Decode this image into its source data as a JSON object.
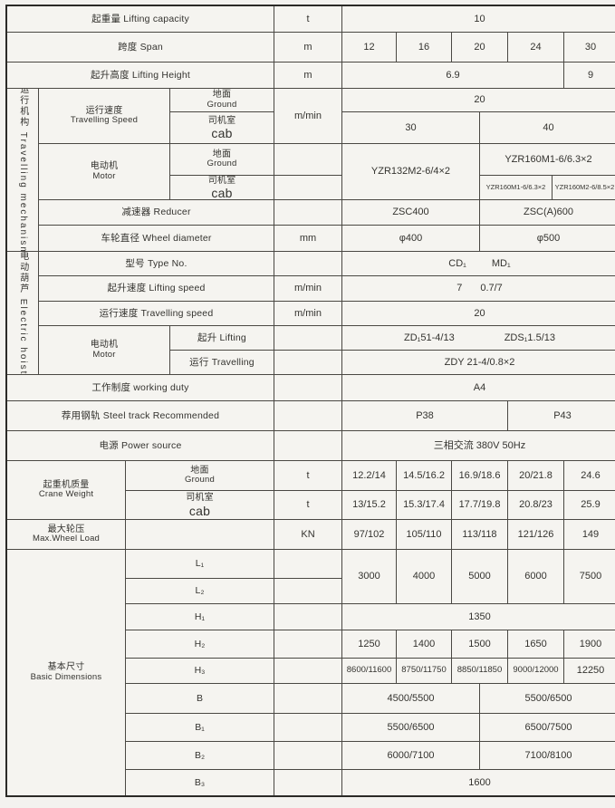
{
  "colors": {
    "paper": "#f3f2ef",
    "cell": "#f5f4f0",
    "line": "#4a4843",
    "text": "#34332f"
  },
  "table": {
    "lifting_capacity": {
      "label": "起重量 Lifting capacity",
      "unit": "t",
      "value": "10"
    },
    "span": {
      "label": "跨度 Span",
      "unit": "m",
      "values": [
        "12",
        "16",
        "20",
        "24",
        "30"
      ]
    },
    "lifting_height": {
      "label": "起升高度 Lifting Height",
      "unit": "m",
      "value_main": "6.9",
      "value_last": "9"
    },
    "travelling_mechanism": {
      "section_label": "运行机构 Travelling mechanism",
      "travelling_speed": {
        "label_zh": "运行速度",
        "label_en": "Travelling Speed",
        "unit": "m/min",
        "ground": {
          "label_zh": "地面",
          "label_en": "Ground",
          "value": "20"
        },
        "cab": {
          "label_zh": "司机室",
          "label_en": "cab",
          "value_left": "30",
          "value_right": "40"
        }
      },
      "motor": {
        "label_zh": "电动机",
        "label_en": "Motor",
        "ground": {
          "label_zh": "地面",
          "label_en": "Ground"
        },
        "cab": {
          "label_zh": "司机室",
          "label_en": "cab"
        },
        "value_main": "YZR132M2-6/4×2",
        "value_ground_right": "YZR160M1-6/6.3×2",
        "value_cab_left": "YZR160M1-6/6.3×2",
        "value_cab_right": "YZR160M2-6/8.5×2"
      },
      "reducer": {
        "label": "减速器 Reducer",
        "value_left": "ZSC400",
        "value_right": "ZSC(A)600"
      },
      "wheel_diameter": {
        "label": "车轮直径 Wheel diameter",
        "unit": "mm",
        "value_left": "φ400",
        "value_right": "φ500"
      }
    },
    "electric_hoist": {
      "section_label": "电动葫芦 Electric hoist",
      "type_no": {
        "label": "型号 Type No.",
        "value_a": "CD₁",
        "value_b": "MD₁"
      },
      "lifting_speed": {
        "label": "起升速度 Lifting speed",
        "unit": "m/min",
        "value_a": "7",
        "value_b": "0.7/7"
      },
      "travelling_speed": {
        "label": "运行速度 Travelling speed",
        "unit": "m/min",
        "value": "20"
      },
      "motor": {
        "label_zh": "电动机",
        "label_en": "Motor",
        "lifting": {
          "label": "起升 Lifting",
          "value_a": "ZD₁51-4/13",
          "value_b": "ZDS₁1.5/13"
        },
        "travelling": {
          "label": "运行 Travelling",
          "value": "ZDY 21-4/0.8×2"
        }
      }
    },
    "working_duty": {
      "label": "工作制度 working duty",
      "value": "A4"
    },
    "steel_track": {
      "label": "荐用钢轨 Steel track Recommended",
      "value_left": "P38",
      "value_right": "P43"
    },
    "power_source": {
      "label": "电源 Power source",
      "value": "三相交流  380V  50Hz"
    },
    "crane_weight": {
      "label_zh": "起重机质量",
      "label_en": "Crane Weight",
      "ground": {
        "label_zh": "地面",
        "label_en": "Ground",
        "unit": "t",
        "values": [
          "12.2/14",
          "14.5/16.2",
          "16.9/18.6",
          "20/21.8",
          "24.6"
        ]
      },
      "cab": {
        "label_zh": "司机室",
        "label_en": "cab",
        "unit": "t",
        "values": [
          "13/15.2",
          "15.3/17.4",
          "17.7/19.8",
          "20.8/23",
          "25.9"
        ]
      }
    },
    "max_wheel_load": {
      "label_zh": "最大轮压",
      "label_en": "Max.Wheel Load",
      "unit": "KN",
      "values": [
        "97/102",
        "105/110",
        "113/118",
        "121/126",
        "149"
      ]
    },
    "basic_dimensions": {
      "label_zh": "基本尺寸",
      "label_en": "Basic Dimensions",
      "L1_label": "L₁",
      "L2_label": "L₂",
      "L_values": [
        "3000",
        "4000",
        "5000",
        "6000",
        "7500"
      ],
      "H1": {
        "label": "H₁",
        "value": "1350"
      },
      "H2": {
        "label": "H₂",
        "values": [
          "1250",
          "1400",
          "1500",
          "1650",
          "1900"
        ]
      },
      "H3": {
        "label": "H₃",
        "values": [
          "8600/11600",
          "8750/11750",
          "8850/11850",
          "9000/12000",
          "12250"
        ]
      },
      "B": {
        "label": "B",
        "value_left": "4500/5500",
        "value_right": "5500/6500"
      },
      "B1": {
        "label": "B₁",
        "value_left": "5500/6500",
        "value_right": "6500/7500"
      },
      "B2": {
        "label": "B₂",
        "value_left": "6000/7100",
        "value_right": "7100/8100"
      },
      "B3": {
        "label": "B₃",
        "value": "1600"
      }
    }
  }
}
